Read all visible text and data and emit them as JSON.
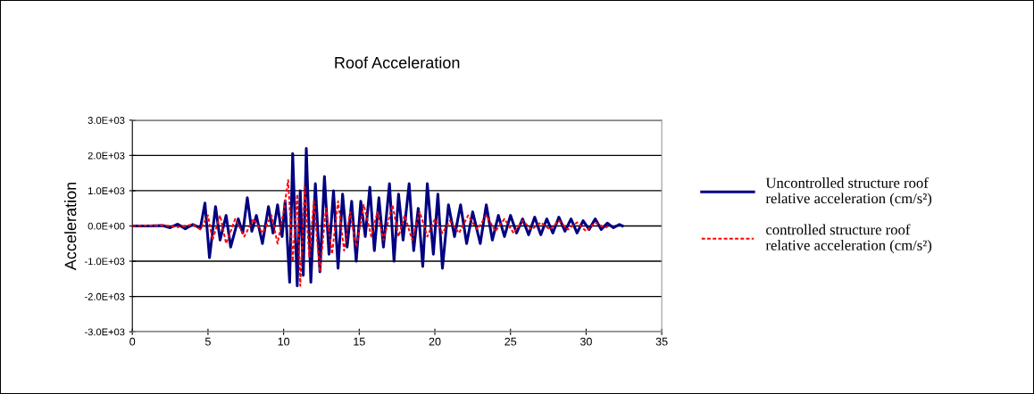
{
  "chart_data": {
    "type": "line",
    "title": "Roof Acceleration",
    "ylabel": "Acceleration",
    "xlim": [
      0,
      35
    ],
    "xticks": [
      0,
      5,
      10,
      15,
      20,
      25,
      30,
      35
    ],
    "ylim": [
      -3000,
      3000
    ],
    "yticks": [
      {
        "value": -3000,
        "label": "-3.0E+03"
      },
      {
        "value": -2000,
        "label": "-2.0E+03"
      },
      {
        "value": -1000,
        "label": "-1.0E+03"
      },
      {
        "value": 0,
        "label": "0.0E+00"
      },
      {
        "value": 1000,
        "label": "1.0E+03"
      },
      {
        "value": 2000,
        "label": "2.0E+03"
      },
      {
        "value": 3000,
        "label": "3.0E+03"
      }
    ],
    "grid": "y",
    "legend": "right",
    "marker": "none",
    "series": [
      {
        "name": "Uncontrolled structure roof\nrelative acceleration (cm/s²)",
        "color": "#000080",
        "line_style": "solid",
        "x": [
          0,
          1,
          2,
          2.5,
          3,
          3.5,
          4,
          4.5,
          4.8,
          5.1,
          5.5,
          5.8,
          6.2,
          6.5,
          7,
          7.3,
          7.6,
          7.9,
          8.2,
          8.6,
          9,
          9.3,
          9.6,
          9.9,
          10.1,
          10.4,
          10.6,
          10.9,
          11.1,
          11.3,
          11.5,
          11.8,
          12.1,
          12.4,
          12.7,
          13,
          13.3,
          13.6,
          13.9,
          14.2,
          14.5,
          14.8,
          15.1,
          15.4,
          15.7,
          16,
          16.3,
          16.6,
          17,
          17.3,
          17.6,
          17.9,
          18.3,
          18.6,
          18.9,
          19.2,
          19.5,
          19.9,
          20.2,
          20.5,
          20.9,
          21.3,
          21.7,
          22.1,
          22.5,
          23,
          23.4,
          23.8,
          24.2,
          24.6,
          25,
          25.4,
          25.8,
          26.2,
          26.6,
          27,
          27.4,
          27.8,
          28.2,
          28.6,
          29,
          29.4,
          29.8,
          30.2,
          30.6,
          31,
          31.4,
          31.8,
          32.2,
          32.4
        ],
        "values": [
          0,
          0,
          10,
          -50,
          50,
          -80,
          40,
          -60,
          650,
          -900,
          550,
          -400,
          300,
          -600,
          200,
          -200,
          800,
          -150,
          300,
          -500,
          550,
          -200,
          600,
          -300,
          700,
          -1600,
          2050,
          -1700,
          1000,
          -1400,
          2200,
          -1600,
          1200,
          -1300,
          1400,
          -800,
          1000,
          -1200,
          900,
          -600,
          700,
          -1000,
          700,
          -300,
          1100,
          -700,
          800,
          -600,
          1200,
          -1000,
          900,
          -400,
          1200,
          -700,
          500,
          -1150,
          1200,
          -800,
          900,
          -1200,
          600,
          -300,
          600,
          -500,
          400,
          -500,
          600,
          -400,
          300,
          -300,
          300,
          -200,
          200,
          -250,
          250,
          -250,
          200,
          -200,
          250,
          -150,
          200,
          -200,
          150,
          -100,
          200,
          -100,
          80,
          -50,
          40,
          0
        ]
      },
      {
        "name": "controlled structure roof\nrelative acceleration (cm/s²)",
        "color": "#ff0000",
        "line_style": "dashed",
        "x": [
          0,
          2,
          3,
          4,
          4.5,
          5,
          5.3,
          5.8,
          6.2,
          6.8,
          7.4,
          8,
          8.6,
          9.2,
          9.6,
          10,
          10.3,
          10.6,
          10.9,
          11.1,
          11.4,
          11.7,
          12,
          12.4,
          12.8,
          13.2,
          13.6,
          14,
          14.4,
          14.8,
          15.3,
          15.8,
          16.2,
          16.6,
          17.2,
          17.6,
          18,
          18.5,
          19,
          19.5,
          20,
          20.5,
          21,
          21.6,
          22.2,
          22.8,
          23.4,
          24,
          24.6,
          25.2,
          25.8,
          26.4,
          27,
          27.6,
          28.2,
          28.8,
          29.4,
          30,
          30.6,
          31.2,
          31.6
        ],
        "values": [
          0,
          20,
          -30,
          40,
          -100,
          300,
          -400,
          300,
          -500,
          200,
          -300,
          200,
          -200,
          300,
          -500,
          400,
          1300,
          -1000,
          900,
          -1700,
          1100,
          -900,
          700,
          -1300,
          500,
          -800,
          700,
          -700,
          400,
          -600,
          600,
          -300,
          400,
          -400,
          600,
          -300,
          300,
          -400,
          400,
          -300,
          200,
          -200,
          150,
          -200,
          300,
          -100,
          300,
          -150,
          200,
          -200,
          150,
          -100,
          100,
          -100,
          150,
          -100,
          100,
          -150,
          100,
          -50,
          0
        ]
      }
    ]
  }
}
